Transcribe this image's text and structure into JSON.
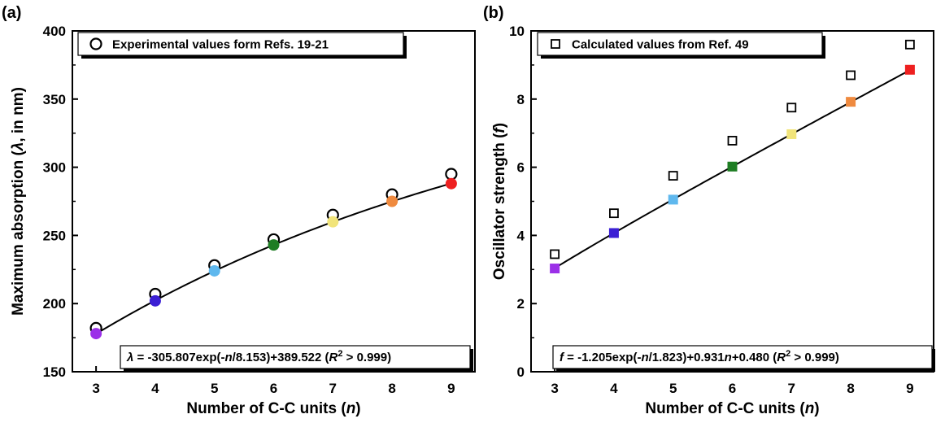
{
  "chart_data": [
    {
      "panel": "(a)",
      "type": "scatter",
      "xlabel": "Number of C-C units (n)",
      "ylabel": "Maximum absorption (λ, in nm)",
      "xlim": [
        2.6,
        9.4
      ],
      "ylim": [
        150,
        400
      ],
      "xticks": [
        3,
        4,
        5,
        6,
        7,
        8,
        9
      ],
      "yticks": [
        150,
        200,
        250,
        300,
        350,
        400
      ],
      "legend_placement": "top",
      "series": [
        {
          "name": "Experimental values form Refs. 19-21",
          "marker": "open-circle",
          "x": [
            3,
            4,
            5,
            6,
            7,
            8,
            9
          ],
          "y": [
            182,
            207,
            228,
            247,
            265,
            280,
            295
          ]
        },
        {
          "marker": "filled-circle",
          "x": [
            3,
            4,
            5,
            6,
            7,
            8,
            9
          ],
          "y": [
            178,
            202,
            224,
            243,
            260,
            275,
            288
          ],
          "colors": [
            "#9b30e8",
            "#3b1fd4",
            "#5fb8ee",
            "#1e7d23",
            "#f1e47a",
            "#ef8a3f",
            "#ee2020"
          ]
        }
      ],
      "fit": {
        "model": "a*exp(-n/t)+c",
        "a": -305.807,
        "t": 8.153,
        "c": 389.522,
        "equation_parts": [
          "λ",
          "  = -305.807exp(-",
          "n",
          "/8.153)+389.522 (",
          "R",
          "2",
          " > 0.999)"
        ]
      }
    },
    {
      "panel": "(b)",
      "type": "scatter",
      "xlabel": "Number of C-C units (n)",
      "ylabel": "Oscillator strength (f)",
      "xlim": [
        2.6,
        9.4
      ],
      "ylim": [
        0,
        10
      ],
      "xticks": [
        3,
        4,
        5,
        6,
        7,
        8,
        9
      ],
      "yticks": [
        0,
        2,
        4,
        6,
        8,
        10
      ],
      "legend_placement": "top",
      "series": [
        {
          "name": "Calculated values from Ref. 49",
          "marker": "open-square",
          "x": [
            3,
            4,
            5,
            6,
            7,
            8,
            9
          ],
          "y": [
            3.45,
            4.65,
            5.75,
            6.78,
            7.75,
            8.7,
            9.6
          ]
        },
        {
          "marker": "filled-square",
          "x": [
            3,
            4,
            5,
            6,
            7,
            8,
            9
          ],
          "y": [
            3.03,
            4.07,
            5.05,
            6.02,
            6.97,
            7.92,
            8.86
          ],
          "colors": [
            "#9b30e8",
            "#3b1fd4",
            "#5fb8ee",
            "#1e7d23",
            "#f1e47a",
            "#ef8a3f",
            "#ee2020"
          ]
        }
      ],
      "fit": {
        "model": "a*exp(-n/t)+b*n+c",
        "a": -1.205,
        "t": 1.823,
        "b": 0.931,
        "c": 0.48,
        "equation_parts": [
          "f",
          "  = -1.205exp(-",
          "n",
          "/1.823)+0.931",
          "n",
          "+0.480 (",
          "R",
          "2",
          " > 0.999)"
        ]
      }
    }
  ]
}
